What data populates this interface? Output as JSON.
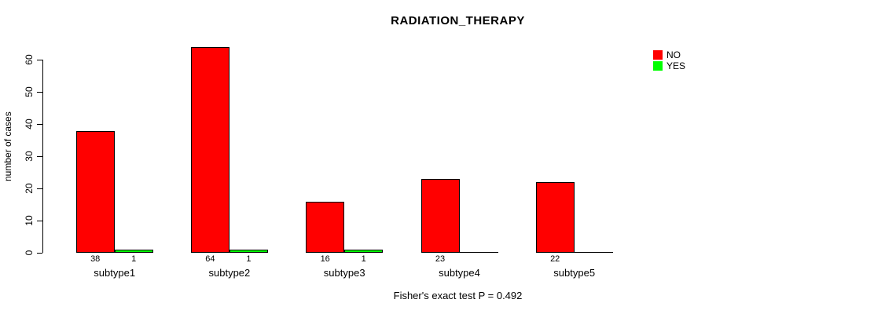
{
  "figure": {
    "title": "RADIATION_THERAPY",
    "annotation": "Fisher's exact test P = 0.492"
  },
  "chart_data": {
    "type": "bar",
    "title": "RADIATION_THERAPY",
    "xlabel": "",
    "ylabel": "number of cases",
    "categories": [
      "subtype1",
      "subtype2",
      "subtype3",
      "subtype4",
      "subtype5"
    ],
    "series": [
      {
        "name": "NO",
        "color": "#ff0000",
        "values": [
          38,
          64,
          16,
          23,
          22
        ]
      },
      {
        "name": "YES",
        "color": "#00ff00",
        "values": [
          1,
          1,
          1,
          0,
          0
        ]
      }
    ],
    "bar_value_labels_shown": true,
    "zero_values_unlabeled": true,
    "yticks": [
      0,
      10,
      20,
      30,
      40,
      50,
      60
    ],
    "ylim": [
      0,
      64
    ],
    "grid": false,
    "legend_position": "top-right",
    "legend_entries": [
      {
        "label": "NO",
        "color": "#ff0000"
      },
      {
        "label": "YES",
        "color": "#00ff00"
      }
    ],
    "annotation": "Fisher's exact test P = 0.492"
  }
}
